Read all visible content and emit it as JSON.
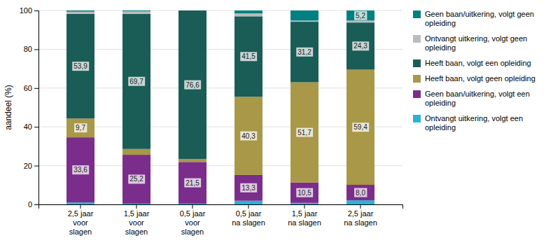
{
  "chart_data": {
    "type": "bar",
    "stacked": true,
    "categories": [
      "2,5 jaar\nvoor\nslagen",
      "1,5 jaar\nvoor\nslagen",
      "0,5 jaar\nvoor\nslagen",
      "0,5 jaar\nna slagen",
      "1,5 jaar\nna slagen",
      "2,5 jaar\nna slagen"
    ],
    "series": [
      {
        "name": "Ontvangt uitkering, volgt een\nopleiding",
        "color": "#29B4D4",
        "values": [
          1.0,
          0.4,
          0.4,
          1.9,
          0.8,
          2.1
        ]
      },
      {
        "name": "Geen baan/uitkering, volgt een\nopleiding",
        "color": "#7B2D8B",
        "values": [
          33.6,
          25.2,
          21.5,
          13.3,
          10.5,
          8.0
        ],
        "data_labels": true,
        "value_labels": [
          "33,6",
          "25,2",
          "21,5",
          "13,3",
          "10,5",
          "8,0"
        ]
      },
      {
        "name": "Heeft baan, volgt geen opleiding",
        "color": "#A89848",
        "values": [
          9.7,
          3.0,
          1.5,
          40.3,
          51.7,
          59.4
        ],
        "data_labels": true,
        "value_labels": [
          "9,7",
          null,
          null,
          "40,3",
          "51,7",
          "59,4"
        ]
      },
      {
        "name": "Heeft baan, volgt een opleiding",
        "color": "#1A5C56",
        "values": [
          53.9,
          69.7,
          76.6,
          41.5,
          31.2,
          24.3
        ],
        "data_labels": true,
        "value_labels": [
          "53,9",
          "69,7",
          "76,6",
          "41,5",
          "31,2",
          "24,3"
        ]
      },
      {
        "name": "Ontvangt uitkering, volgt geen\nopleiding",
        "color": "#BCBCBC",
        "values": [
          1.2,
          1.3,
          0.0,
          1.5,
          0.6,
          1.0
        ]
      },
      {
        "name": "Geen baan/uitkering, volgt geen\nopleiding",
        "color": "#008080",
        "values": [
          0.6,
          0.4,
          0.0,
          1.5,
          5.2,
          5.2
        ],
        "data_labels": true,
        "value_labels": [
          null,
          null,
          null,
          null,
          null,
          "5,2"
        ]
      }
    ],
    "y_label": "aandeel (%)",
    "ylim": [
      0,
      100
    ],
    "yticks": [
      0,
      20,
      40,
      60,
      80,
      100
    ],
    "grid": true,
    "legend": "right"
  }
}
